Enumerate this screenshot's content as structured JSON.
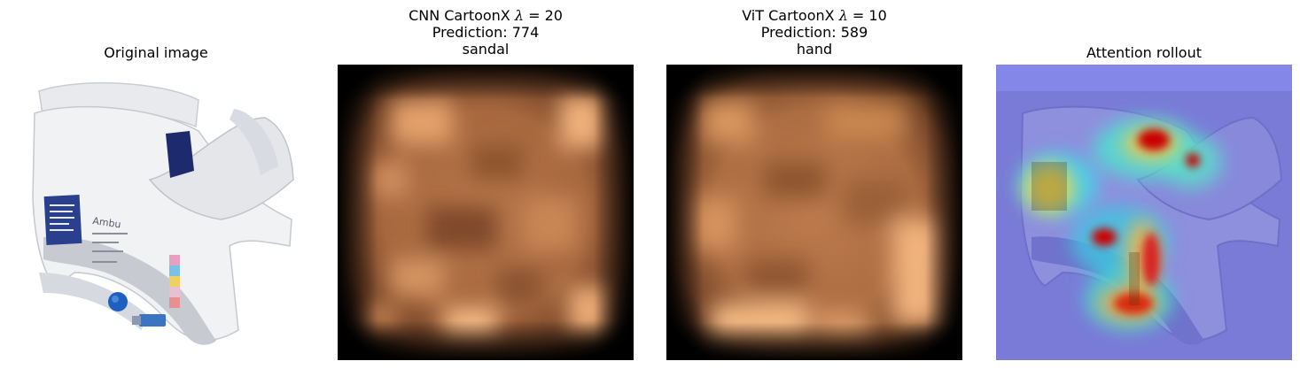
{
  "panels": [
    {
      "title_lines": [
        "Original image"
      ],
      "image": "neck-collar-photo"
    },
    {
      "title_lines": [
        "CNN CartoonX λ = 20",
        "Prediction: 774",
        "sandal"
      ],
      "title_parts": {
        "prefix": "CNN CartoonX ",
        "symbol": "λ",
        "suffix": " = 20"
      },
      "prediction_label": "Prediction: 774",
      "class_name": "sandal",
      "image": "cartoonx-mask-copper"
    },
    {
      "title_lines": [
        "ViT CartoonX λ = 10",
        "Prediction: 589",
        "hand"
      ],
      "title_parts": {
        "prefix": "ViT CartoonX ",
        "symbol": "λ",
        "suffix": " = 10"
      },
      "prediction_label": "Prediction: 589",
      "class_name": "hand",
      "image": "cartoonx-mask-copper"
    },
    {
      "title_lines": [
        "Attention rollout"
      ],
      "image": "attention-heatmap-overlay"
    }
  ],
  "colors": {
    "copper_dark": "#000000",
    "copper_mid": "#c98050",
    "copper_light": "#ffc27f",
    "heatmap_blue": "#7b7be0",
    "heatmap_red": "#cc0000"
  }
}
